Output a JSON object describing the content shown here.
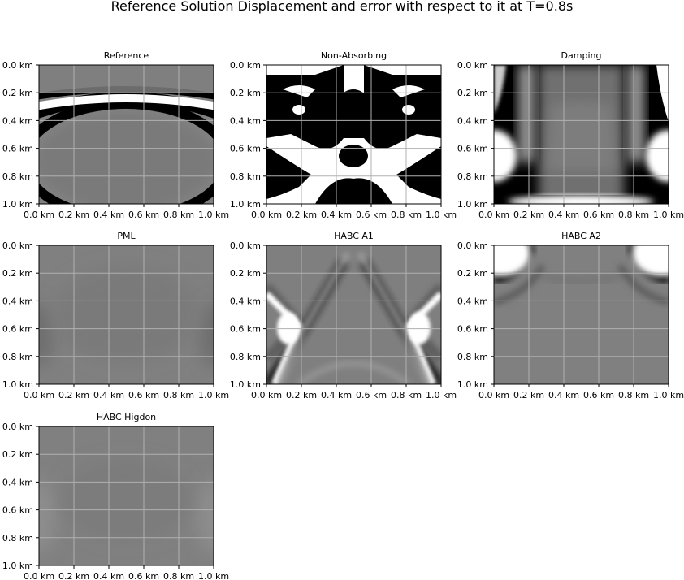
{
  "chart_data": {
    "type": "heatmap",
    "title": "Reference Solution Displacement and error with respect to it at T=0.8s",
    "colormap": "gray",
    "grid": true,
    "xlim": [
      0.0,
      1.0
    ],
    "ylim": [
      0.0,
      1.0
    ],
    "y_inverted": true,
    "x_ticks": [
      0.0,
      0.2,
      0.4,
      0.6,
      0.8,
      1.0
    ],
    "y_ticks": [
      0.0,
      0.2,
      0.4,
      0.6,
      0.8,
      1.0
    ],
    "x_tick_labels": [
      "0.0 km",
      "0.2 km",
      "0.4 km",
      "0.6 km",
      "0.8 km",
      "1.0 km"
    ],
    "y_tick_labels": [
      "0.0 km",
      "0.2 km",
      "0.4 km",
      "0.6 km",
      "0.8 km",
      "1.0 km"
    ],
    "panels": [
      {
        "id": "reference",
        "title": "Reference"
      },
      {
        "id": "non-absorbing",
        "title": "Non-Absorbing"
      },
      {
        "id": "damping",
        "title": "Damping"
      },
      {
        "id": "pml",
        "title": "PML"
      },
      {
        "id": "habc-a1",
        "title": "HABC A1"
      },
      {
        "id": "habc-a2",
        "title": "HABC A2"
      },
      {
        "id": "habc-higdon",
        "title": "HABC Higdon"
      }
    ]
  }
}
